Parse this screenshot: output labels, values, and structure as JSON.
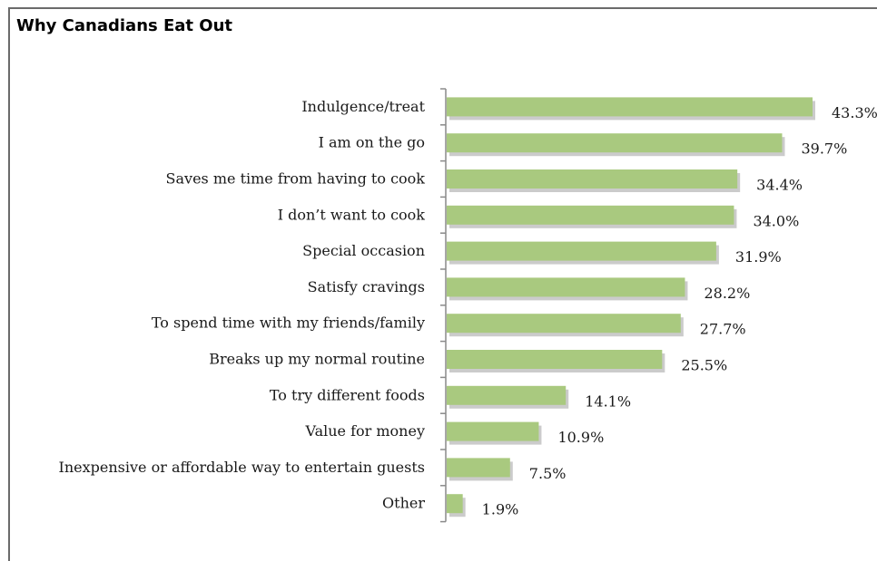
{
  "chart_data": {
    "type": "bar",
    "orientation": "horizontal",
    "title": "Why Canadians Eat Out",
    "categories": [
      "Indulgence/treat",
      "I am on the go",
      "Saves me time from having to cook",
      "I don’t want to cook",
      "Special occasion",
      "Satisfy cravings",
      "To spend time with my friends/family",
      "Breaks up my normal routine",
      "To try different foods",
      "Value for money",
      "Inexpensive or affordable way to entertain guests",
      "Other"
    ],
    "values": [
      43.3,
      39.7,
      34.4,
      34.0,
      31.9,
      28.2,
      27.7,
      25.5,
      14.1,
      10.9,
      7.5,
      1.9
    ],
    "value_labels": [
      "43.3%",
      "39.7%",
      "34.4%",
      "34.0%",
      "31.9%",
      "28.2%",
      "27.7%",
      "25.5%",
      "14.1%",
      "10.9%",
      "7.5%",
      "1.9%"
    ],
    "xlim": [
      0,
      43.3
    ],
    "grid": false,
    "bar_color": "#a9c97f",
    "bar_shadow_color": "#b5b5b5"
  }
}
